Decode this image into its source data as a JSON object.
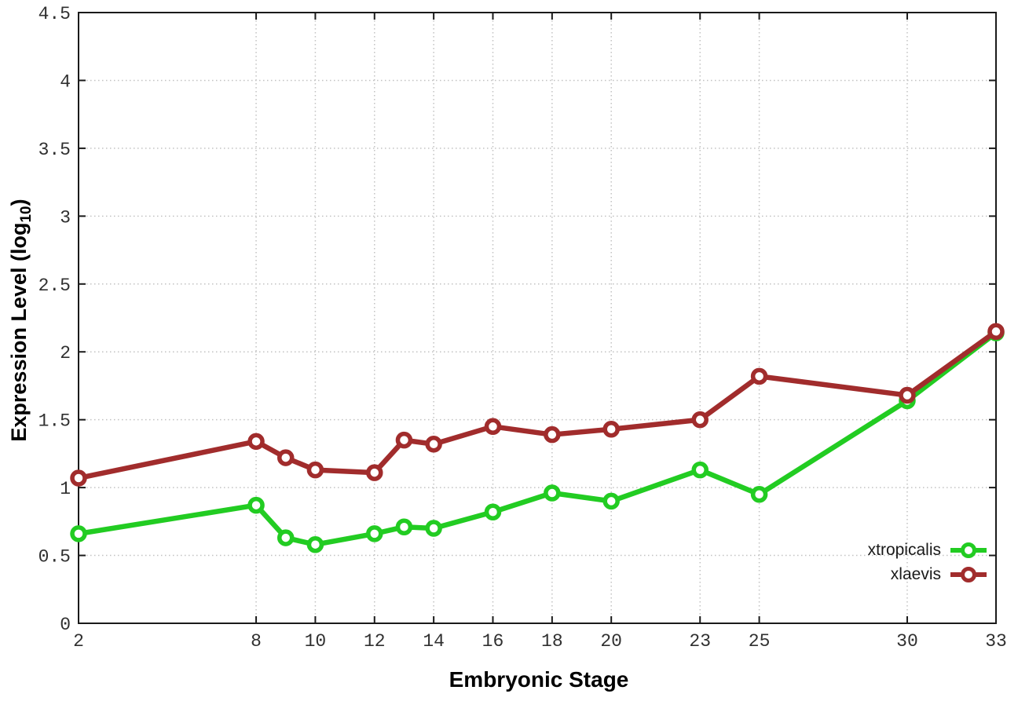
{
  "labels": {
    "y_prefix": "Expression Level (log",
    "y_sub": "10",
    "y_suffix": ")",
    "x_title": "Embryonic Stage"
  },
  "chart_data": {
    "type": "line",
    "title": "",
    "xlabel": "Embryonic Stage",
    "ylabel": "Expression Level (log10)",
    "grid": true,
    "legend_position": "bottom-right-inside",
    "xlim": [
      2,
      33
    ],
    "ylim": [
      0,
      4.5
    ],
    "x_ticks": [
      {
        "v": 2,
        "label": "2"
      },
      {
        "v": 8,
        "label": "8"
      },
      {
        "v": 10,
        "label": "10"
      },
      {
        "v": 12,
        "label": "12"
      },
      {
        "v": 14,
        "label": "14"
      },
      {
        "v": 16,
        "label": "16"
      },
      {
        "v": 18,
        "label": "18"
      },
      {
        "v": 20,
        "label": "20"
      },
      {
        "v": 23,
        "label": "23"
      },
      {
        "v": 25,
        "label": "25"
      },
      {
        "v": 30,
        "label": "30"
      },
      {
        "v": 33,
        "label": "33"
      }
    ],
    "y_ticks": [
      {
        "v": 0,
        "label": "0"
      },
      {
        "v": 0.5,
        "label": "0.5"
      },
      {
        "v": 1,
        "label": "1"
      },
      {
        "v": 1.5,
        "label": "1.5"
      },
      {
        "v": 2,
        "label": "2"
      },
      {
        "v": 2.5,
        "label": "2.5"
      },
      {
        "v": 3,
        "label": "3"
      },
      {
        "v": 3.5,
        "label": "3.5"
      },
      {
        "v": 4,
        "label": "4"
      },
      {
        "v": 4.5,
        "label": "4.5"
      }
    ],
    "x": [
      2,
      8,
      9,
      10,
      12,
      13,
      14,
      16,
      18,
      20,
      23,
      25,
      30,
      33
    ],
    "series": [
      {
        "name": "xtropicalis",
        "color": "#22cc22",
        "values": [
          0.66,
          0.87,
          0.63,
          0.58,
          0.66,
          0.71,
          0.7,
          0.82,
          0.96,
          0.9,
          1.13,
          0.95,
          1.64,
          2.14
        ]
      },
      {
        "name": "xlaevis",
        "color": "#a12c2c",
        "values": [
          1.07,
          1.34,
          1.22,
          1.13,
          1.11,
          1.35,
          1.32,
          1.45,
          1.39,
          1.43,
          1.5,
          1.82,
          1.68,
          2.15
        ]
      }
    ]
  }
}
